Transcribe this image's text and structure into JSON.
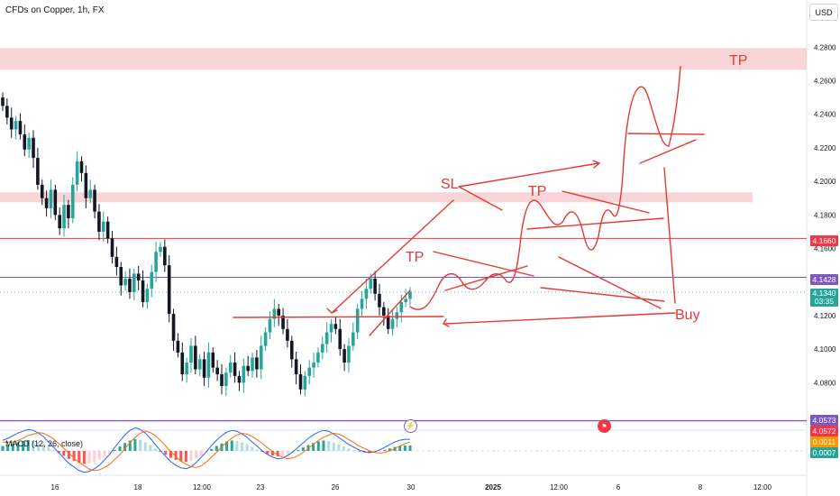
{
  "header": {
    "title": "CFDs on Copper, 1h, FX",
    "currency_button": "USD"
  },
  "macd": {
    "label": "MACD (12, 26, close)",
    "value_1": "0.0011",
    "value_2": "0.0007"
  },
  "price_tags": {
    "resistance": "4.1660",
    "entry": "4.1428",
    "last_price": "4.1340",
    "countdown": "03:35",
    "support_1": "4.0573",
    "support_2": "4.0572"
  },
  "icons": {
    "event_1": "lightning-icon",
    "event_2": "us-flag-icon"
  },
  "colors": {
    "up": "#26a69a",
    "down": "#131722",
    "annotation": "#e53935",
    "zone": "#f8c7c9",
    "level_red": "#f23645",
    "level_purple": "#7e57c2"
  },
  "chart_data": {
    "type": "candlestick",
    "title": "CFDs on Copper, 1h, FX",
    "y_ticks": [
      "4.2800",
      "4.2600",
      "4.2400",
      "4.2200",
      "4.2000",
      "4.1800",
      "4.1600",
      "4.1400",
      "4.1200",
      "4.1000",
      "4.0800"
    ],
    "x_ticks": [
      "16",
      "18",
      "12:00",
      "23",
      "26",
      "30",
      "2025",
      "12:00",
      "6",
      "8",
      "12:00"
    ],
    "ylim": [
      4.056,
      4.292
    ],
    "closes": [
      4.245,
      4.238,
      4.231,
      4.236,
      4.228,
      4.219,
      4.226,
      4.214,
      4.198,
      4.19,
      4.184,
      4.195,
      4.18,
      4.172,
      4.186,
      4.178,
      4.198,
      4.212,
      4.205,
      4.19,
      4.195,
      4.182,
      4.17,
      4.176,
      4.166,
      4.155,
      4.149,
      4.138,
      4.142,
      4.134,
      4.145,
      4.141,
      4.128,
      4.136,
      4.146,
      4.158,
      4.161,
      4.15,
      4.121,
      4.105,
      4.098,
      4.085,
      4.092,
      4.102,
      4.088,
      4.094,
      4.083,
      4.098,
      4.089,
      4.085,
      4.078,
      4.086,
      4.092,
      4.084,
      4.08,
      4.09,
      4.087,
      4.095,
      4.088,
      4.102,
      4.11,
      4.118,
      4.124,
      4.12,
      4.112,
      4.105,
      4.094,
      4.085,
      4.076,
      4.084,
      4.089,
      4.092,
      4.098,
      4.103,
      4.11,
      4.115,
      4.112,
      4.1,
      4.092,
      4.102,
      4.11,
      4.124,
      4.13,
      4.136,
      4.142,
      4.133,
      4.125,
      4.12,
      4.112,
      4.118,
      4.122,
      4.128,
      4.13,
      4.134
    ],
    "levels": [
      {
        "name": "4.1660",
        "value": 4.166
      },
      {
        "name": "4.1428",
        "value": 4.1428
      },
      {
        "name": "4.0573",
        "value": 4.0573
      }
    ],
    "zones": [
      {
        "from": 4.2665,
        "to": 4.2795
      },
      {
        "from": 4.1875,
        "to": 4.1935
      }
    ],
    "annotations": [
      "TP",
      "TP",
      "TP",
      "SL",
      "Buy"
    ],
    "macd_histogram": [
      0.001,
      0.0012,
      0.0015,
      0.0018,
      0.002,
      0.0022,
      0.0021,
      0.0018,
      0.0014,
      0.0008,
      0.0002,
      -0.0004,
      -0.001,
      -0.0016,
      -0.002,
      -0.0024,
      -0.0026,
      -0.0025,
      -0.0022,
      -0.0018,
      -0.0012,
      -0.0006,
      0.0002,
      0.0009,
      0.0016,
      0.0021,
      0.0024,
      0.0022,
      0.0018,
      0.0012,
      0.0005,
      -0.0002,
      -0.0008,
      -0.0014,
      -0.0018,
      -0.0021,
      -0.0022,
      -0.002,
      -0.0015,
      -0.0009,
      -0.0003,
      0.0004,
      0.001,
      0.0015,
      0.0019,
      0.0021,
      0.002,
      0.0017,
      0.0013,
      0.0008,
      0.0003,
      -0.0002,
      -0.0006,
      -0.0009,
      -0.0011,
      -0.001,
      -0.0007,
      -0.0003,
      0.0002,
      0.0007,
      0.0012,
      0.0016,
      0.0019,
      0.0021,
      0.002,
      0.0017,
      0.0013,
      0.0009,
      0.0005,
      0.0002,
      -0.0001,
      -0.0003,
      -0.0004,
      -0.0003,
      -0.0001,
      0.0002,
      0.0005,
      0.0008,
      0.001,
      0.0011,
      0.0011
    ]
  }
}
